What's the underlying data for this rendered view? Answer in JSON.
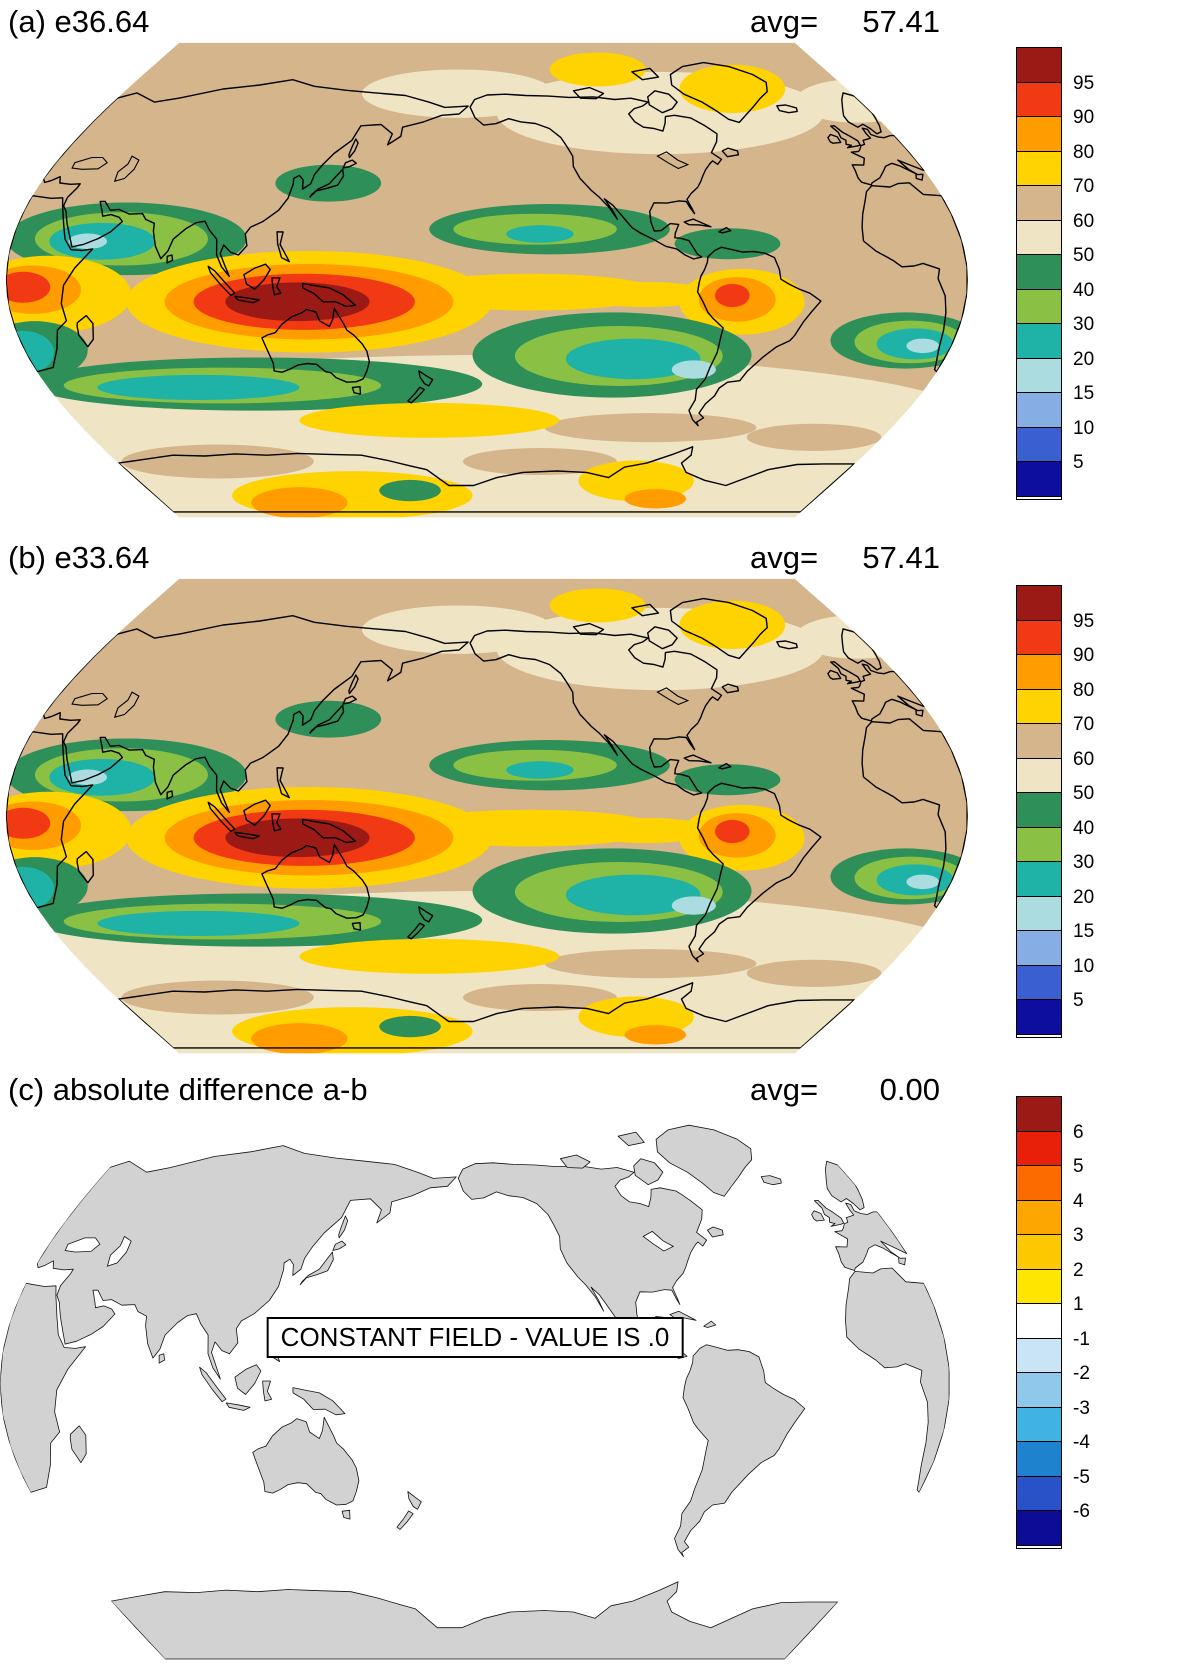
{
  "figure": {
    "background": "#ffffff"
  },
  "panels": [
    {
      "label": "a",
      "title": "(a) e36.64",
      "avg_label": "avg=",
      "avg_value": "57.41"
    },
    {
      "label": "b",
      "title": "(b) e33.64",
      "avg_label": "avg=",
      "avg_value": "57.41"
    },
    {
      "label": "c",
      "title": "(c) absolute difference a-b",
      "avg_label": "avg=",
      "avg_value": "0.00",
      "overlay_text": "CONSTANT FIELD - VALUE IS .0"
    }
  ],
  "colorbars": [
    {
      "labels": [
        "95",
        "90",
        "80",
        "70",
        "60",
        "50",
        "40",
        "30",
        "20",
        "15",
        "10",
        "5"
      ],
      "colors": [
        "#9b1a16",
        "#f13a13",
        "#ff9c00",
        "#ffd300",
        "#d5b58c",
        "#efe4c4",
        "#2e8f58",
        "#8ac043",
        "#1fb2a6",
        "#aadce0",
        "#87aee4",
        "#3a5fd0",
        "#0d0d9e"
      ]
    },
    {
      "labels": [
        "95",
        "90",
        "80",
        "70",
        "60",
        "50",
        "40",
        "30",
        "20",
        "15",
        "10",
        "5"
      ],
      "colors": [
        "#9b1a16",
        "#f13a13",
        "#ff9c00",
        "#ffd300",
        "#d5b58c",
        "#efe4c4",
        "#2e8f58",
        "#8ac043",
        "#1fb2a6",
        "#aadce0",
        "#87aee4",
        "#3a5fd0",
        "#0d0d9e"
      ]
    },
    {
      "labels": [
        "6",
        "5",
        "4",
        "3",
        "2",
        "1",
        "-1",
        "-2",
        "-3",
        "-4",
        "-5",
        "-6"
      ],
      "colors": [
        "#9b1a16",
        "#e81f09",
        "#fb6b00",
        "#fda500",
        "#fdc800",
        "#ffe600",
        "#ffffff",
        "#c9e4f5",
        "#8ec9ec",
        "#40b2e4",
        "#1e82cf",
        "#2951c8",
        "#0c0c96"
      ]
    }
  ],
  "map": {
    "difference_land_fill": "#d2d2d2",
    "coastline_color": "#000000",
    "ocean_fill_difference": "#ffffff"
  },
  "chart_data": [
    {
      "type": "heatmap",
      "subtype": "filled-contour-global-map",
      "title": "(a) e36.64",
      "stat": {
        "label": "avg=",
        "value": 57.41
      },
      "projection": "robinson",
      "contour_levels": [
        5,
        10,
        15,
        20,
        30,
        40,
        50,
        60,
        70,
        80,
        90,
        95
      ],
      "palette_high_to_low": [
        "#9b1a16",
        "#f13a13",
        "#ff9c00",
        "#ffd300",
        "#d5b58c",
        "#efe4c4",
        "#2e8f58",
        "#8ac043",
        "#1fb2a6",
        "#aadce0",
        "#87aee4",
        "#3a5fd0",
        "#0d0d9e"
      ],
      "legend_position": "right",
      "description": "Global filled-contour field. Maximum (>95, dark red) over the Maritime Continent / tropical Indo-Pacific; secondary warm maxima (orange/red) over equatorial Africa (left map edge) and northern South America; warm yellow band along the equator and patches near both poles; minima (teal/pale blue, 15-30) over subtropical oceans: Arabian Sea region, South Indian Ocean, Southeast Pacific and South Atlantic; background values 50-70 (beige/tan) elsewhere."
    },
    {
      "type": "heatmap",
      "subtype": "filled-contour-global-map",
      "title": "(b) e33.64",
      "stat": {
        "label": "avg=",
        "value": 57.41
      },
      "projection": "robinson",
      "contour_levels": [
        5,
        10,
        15,
        20,
        30,
        40,
        50,
        60,
        70,
        80,
        90,
        95
      ],
      "palette_high_to_low": [
        "#9b1a16",
        "#f13a13",
        "#ff9c00",
        "#ffd300",
        "#d5b58c",
        "#efe4c4",
        "#2e8f58",
        "#8ac043",
        "#1fb2a6",
        "#aadce0",
        "#87aee4",
        "#3a5fd0",
        "#0d0d9e"
      ],
      "legend_position": "right",
      "description": "Visually identical to panel (a); same spatial pattern and same global average."
    },
    {
      "type": "heatmap",
      "subtype": "difference-global-map",
      "title": "(c) absolute difference a-b",
      "stat": {
        "label": "avg=",
        "value": 0.0
      },
      "projection": "robinson",
      "contour_levels": [
        -6,
        -5,
        -4,
        -3,
        -2,
        -1,
        1,
        2,
        3,
        4,
        5,
        6
      ],
      "palette_high_to_low": [
        "#9b1a16",
        "#e81f09",
        "#fb6b00",
        "#fda500",
        "#fdc800",
        "#ffe600",
        "#ffffff",
        "#c9e4f5",
        "#8ec9ec",
        "#40b2e4",
        "#1e82cf",
        "#2951c8",
        "#0c0c96"
      ],
      "legend_position": "right",
      "annotation": "CONSTANT FIELD - VALUE IS .0",
      "field_value": 0,
      "description": "Difference map a minus b is identically zero; map shows gray continents on white with a constant-field notice box."
    }
  ]
}
